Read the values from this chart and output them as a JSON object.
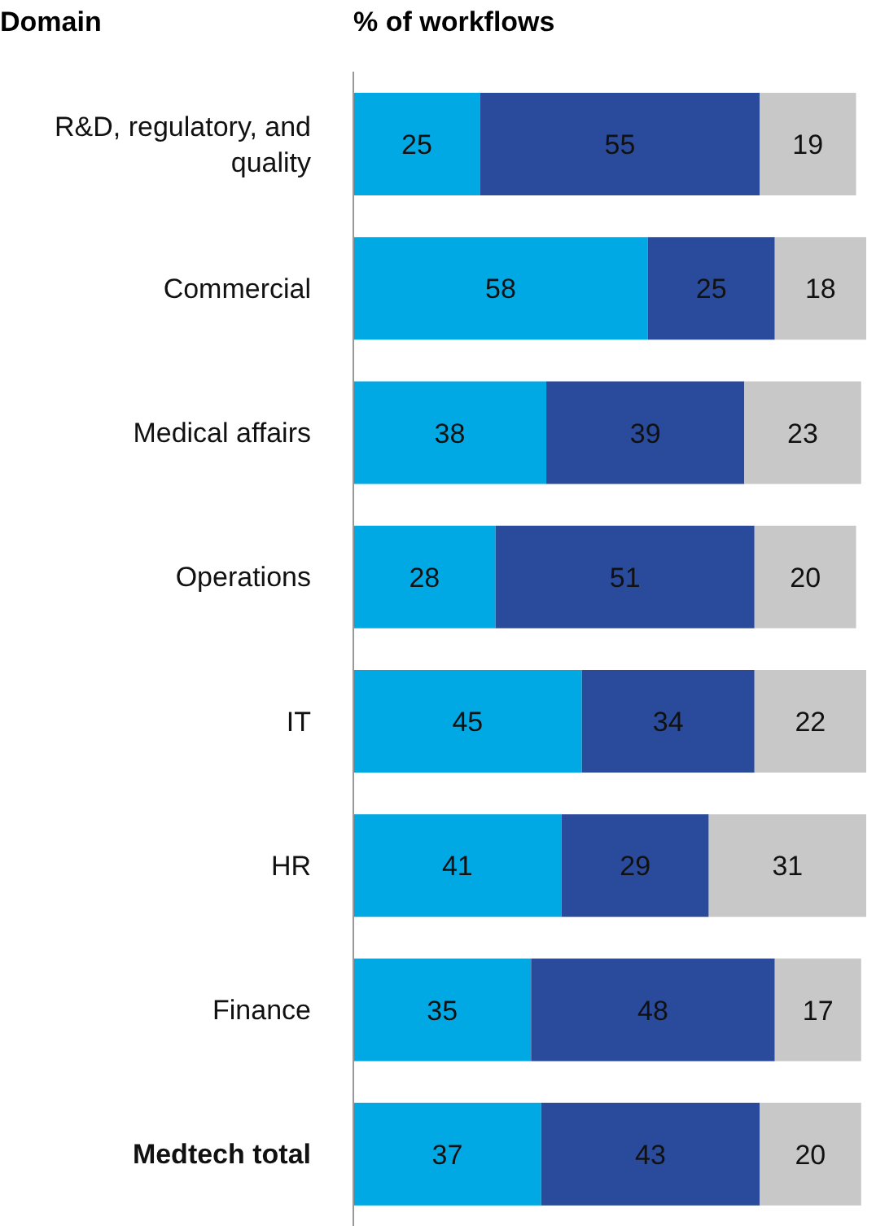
{
  "chart_data": {
    "type": "bar",
    "orientation": "horizontal",
    "stacked": true,
    "ylabel": "Domain",
    "xlabel": "% of workflows",
    "categories": [
      "R&D, regulatory, and quality",
      "Commercial",
      "Medical affairs",
      "Operations",
      "IT",
      "HR",
      "Finance",
      "Medtech total"
    ],
    "series": [
      {
        "color": "#00a9e4",
        "values": [
          25,
          58,
          38,
          28,
          45,
          41,
          35,
          37
        ]
      },
      {
        "color": "#2a4b9b",
        "values": [
          55,
          25,
          39,
          51,
          34,
          29,
          48,
          43
        ]
      },
      {
        "color": "#c8c8c8",
        "values": [
          19,
          18,
          23,
          20,
          22,
          31,
          17,
          20
        ]
      }
    ],
    "xlim": [
      0,
      101
    ],
    "tick_labels": false,
    "data_labels": true,
    "legend": false,
    "grid": false
  }
}
